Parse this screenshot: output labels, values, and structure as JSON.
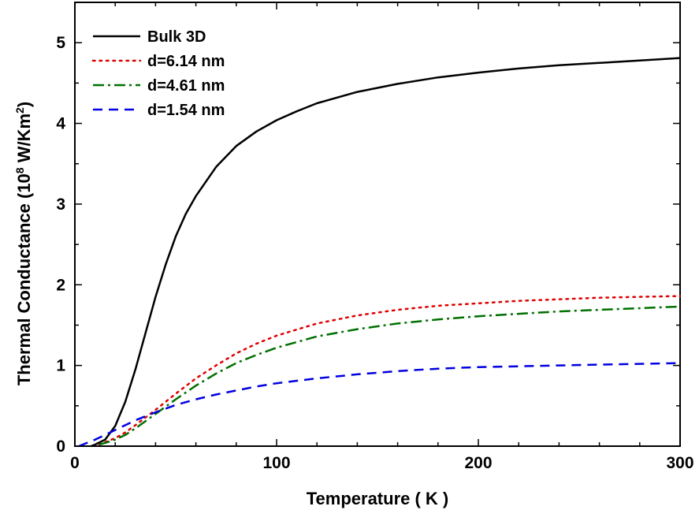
{
  "chart_data": {
    "type": "line",
    "xlabel": "Temperature ( K )",
    "ylabel": "Thermal Conductance (10",
    "ylabel_sup": "8",
    "ylabel_unit": " W/Km",
    "ylabel_unit_sup": "2",
    "ylabel_close": ")",
    "xlim": [
      0,
      300
    ],
    "ylim": [
      0,
      5.5
    ],
    "xticks": [
      0,
      100,
      200,
      300
    ],
    "xtick_labels": [
      "0",
      "100",
      "200",
      "300"
    ],
    "yticks": [
      0,
      1,
      2,
      3,
      4,
      5
    ],
    "ytick_labels": [
      "0",
      "1",
      "2",
      "3",
      "4",
      "5"
    ],
    "grid": false,
    "legend_position": "top-left",
    "series": [
      {
        "name": "Bulk 3D",
        "color": "#000000",
        "dash": "solid",
        "x": [
          8,
          10,
          15,
          20,
          25,
          30,
          35,
          40,
          45,
          50,
          55,
          60,
          70,
          80,
          90,
          100,
          110,
          120,
          140,
          160,
          180,
          200,
          220,
          240,
          260,
          280,
          300
        ],
        "y": [
          0.0,
          0.02,
          0.08,
          0.25,
          0.55,
          0.95,
          1.4,
          1.85,
          2.25,
          2.6,
          2.88,
          3.1,
          3.46,
          3.72,
          3.9,
          4.04,
          4.15,
          4.25,
          4.39,
          4.49,
          4.57,
          4.63,
          4.68,
          4.72,
          4.75,
          4.78,
          4.81
        ]
      },
      {
        "name": "d=6.14 nm",
        "color": "#e00000",
        "dash": "dotted",
        "x": [
          12,
          15,
          20,
          25,
          30,
          40,
          50,
          60,
          70,
          80,
          90,
          100,
          120,
          140,
          160,
          180,
          200,
          220,
          240,
          260,
          280,
          300
        ],
        "y": [
          0.02,
          0.05,
          0.1,
          0.17,
          0.26,
          0.45,
          0.65,
          0.84,
          1.0,
          1.15,
          1.27,
          1.37,
          1.52,
          1.62,
          1.69,
          1.74,
          1.77,
          1.8,
          1.82,
          1.84,
          1.85,
          1.86
        ]
      },
      {
        "name": "d=4.61 nm",
        "color": "#007000",
        "dash": "dashdot",
        "x": [
          12,
          15,
          20,
          25,
          30,
          40,
          50,
          60,
          70,
          80,
          90,
          100,
          120,
          140,
          160,
          180,
          200,
          220,
          240,
          260,
          280,
          300
        ],
        "y": [
          0.02,
          0.04,
          0.08,
          0.14,
          0.22,
          0.4,
          0.58,
          0.75,
          0.9,
          1.03,
          1.13,
          1.22,
          1.36,
          1.45,
          1.52,
          1.57,
          1.61,
          1.64,
          1.67,
          1.69,
          1.71,
          1.73
        ]
      },
      {
        "name": "d=1.54 nm",
        "color": "#0000e0",
        "dash": "dashed",
        "x": [
          2,
          5,
          10,
          15,
          20,
          25,
          30,
          40,
          50,
          60,
          70,
          80,
          90,
          100,
          120,
          140,
          160,
          180,
          200,
          220,
          240,
          260,
          280,
          300
        ],
        "y": [
          0.0,
          0.03,
          0.08,
          0.14,
          0.2,
          0.26,
          0.32,
          0.42,
          0.51,
          0.58,
          0.64,
          0.69,
          0.74,
          0.78,
          0.84,
          0.89,
          0.93,
          0.96,
          0.98,
          0.99,
          1.0,
          1.01,
          1.02,
          1.03
        ]
      }
    ]
  }
}
